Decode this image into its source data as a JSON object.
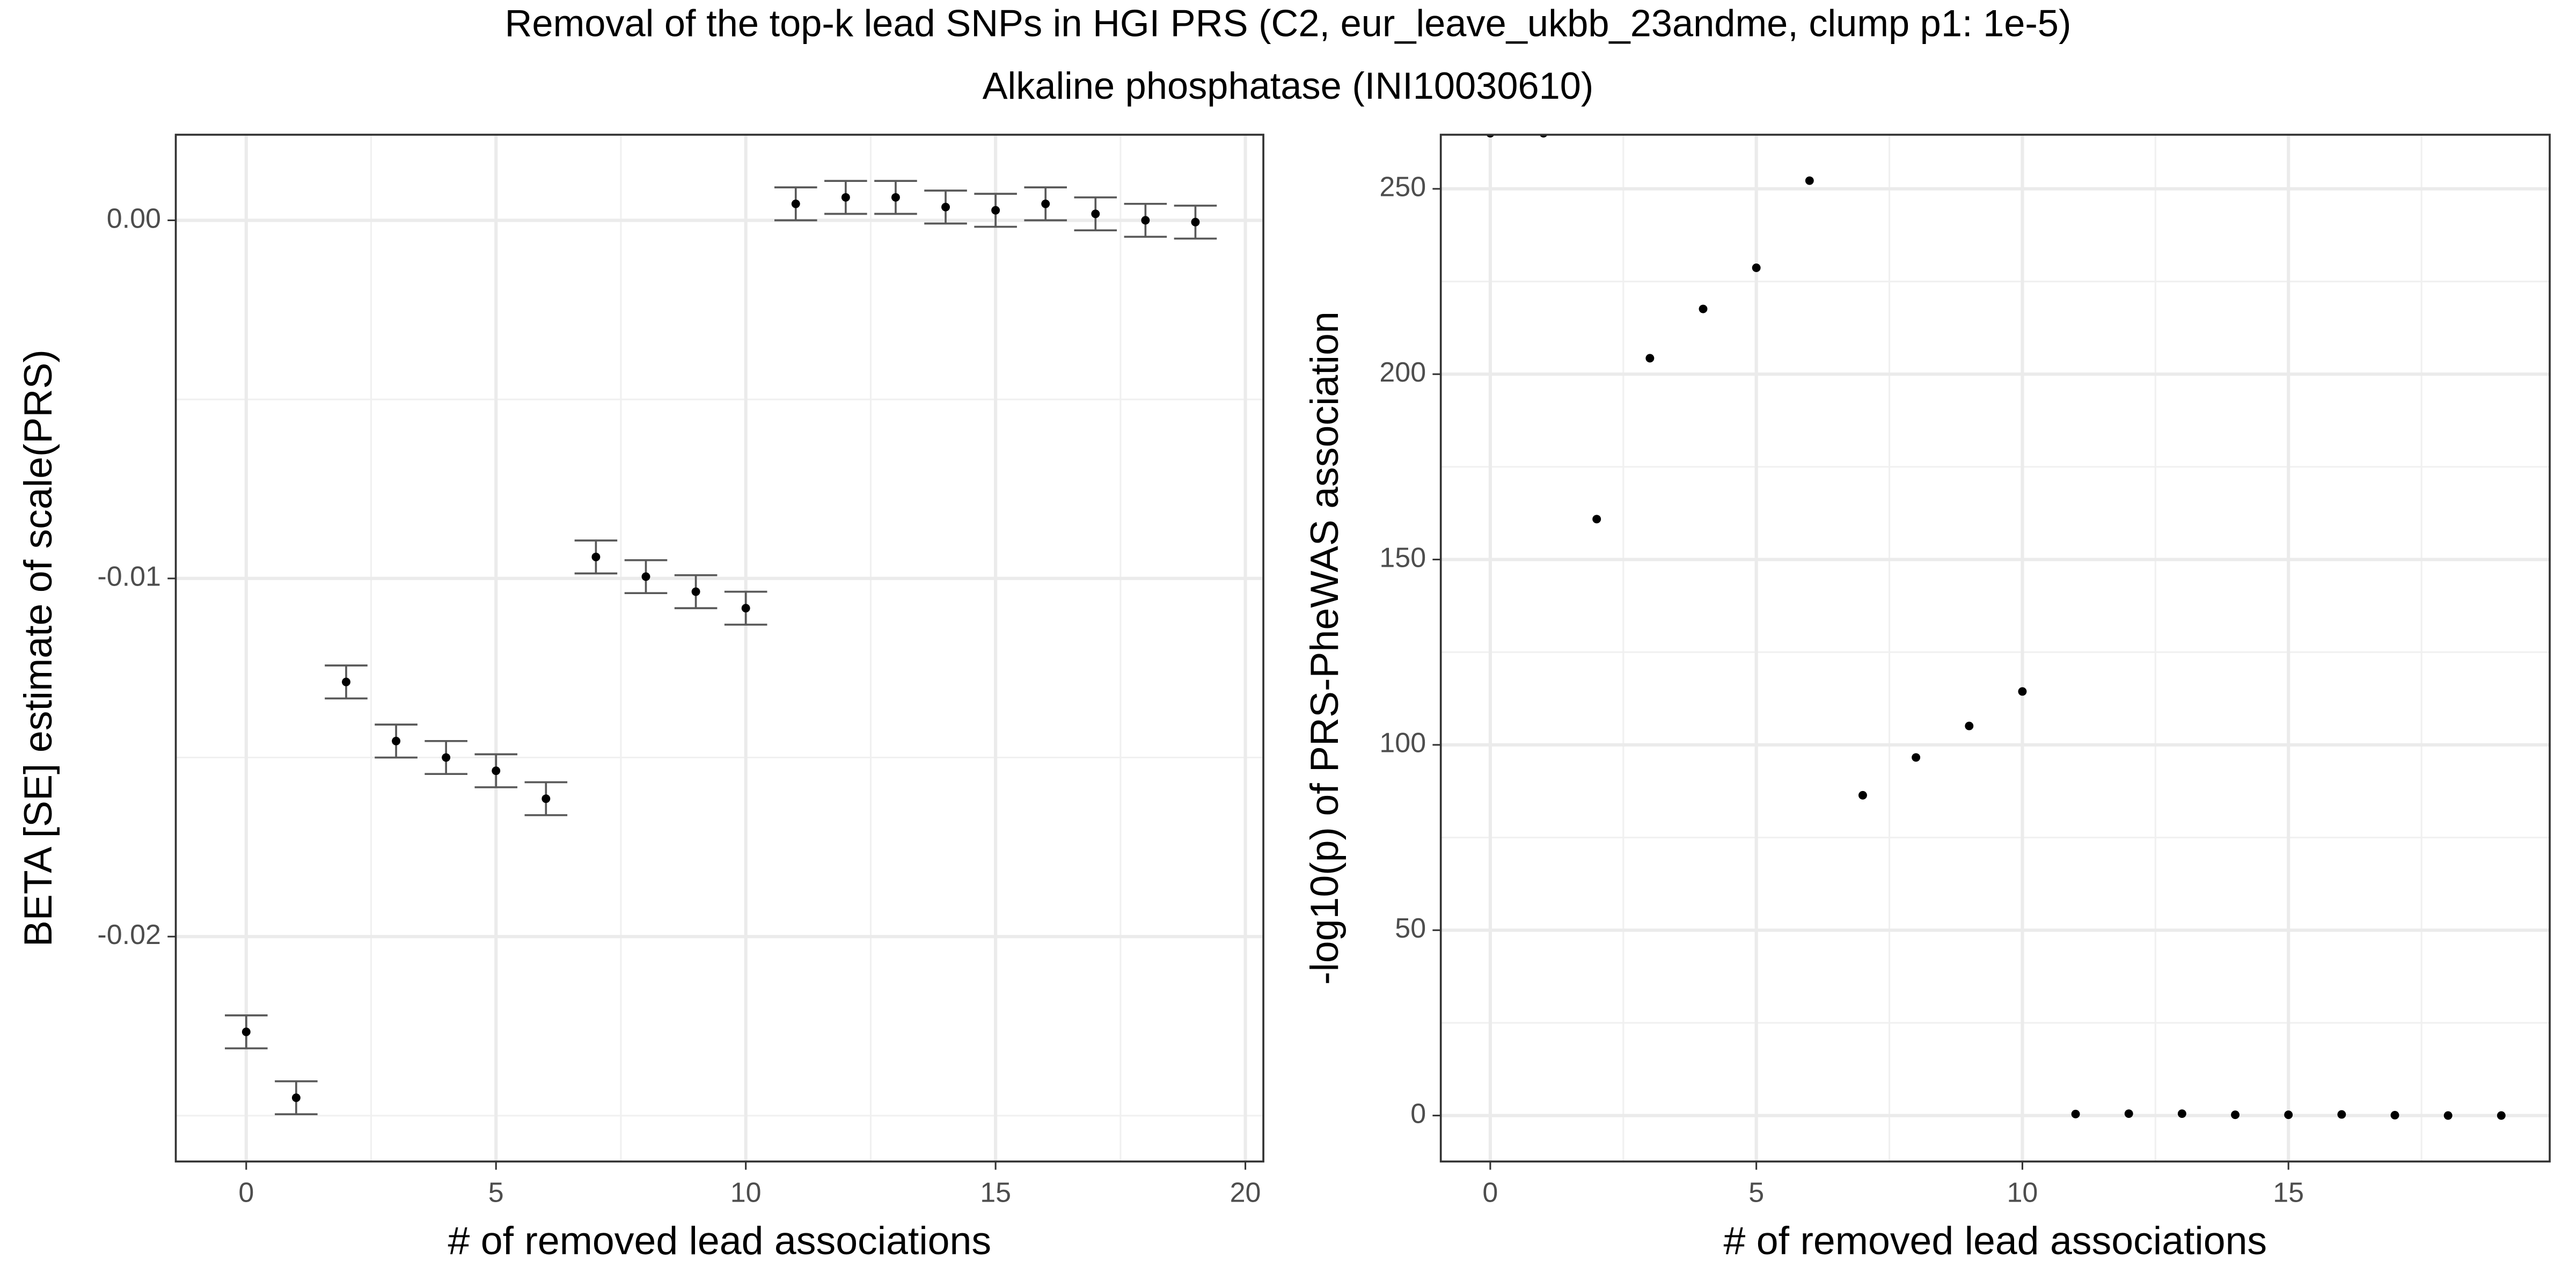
{
  "title": "Removal of the top-k lead SNPs in HGI PRS (C2, eur_leave_ukbb_23andme, clump p1: 1e-5)",
  "subtitle": "Alkaline phosphatase (INI10030610)",
  "chart_data": [
    {
      "type": "scatter",
      "x_label": "# of removed lead associations",
      "y_label": "BETA [SE] estimate of scale(PRS)",
      "x": [
        0,
        1,
        2,
        3,
        4,
        5,
        6,
        7,
        8,
        9,
        10,
        11,
        12,
        13,
        14,
        15,
        16,
        17,
        18,
        19
      ],
      "values": [
        -0.02266,
        -0.0245,
        -0.01289,
        -0.01454,
        -0.015,
        -0.01537,
        -0.01615,
        -0.0094,
        -0.00995,
        -0.01037,
        -0.01083,
        0.00046,
        0.00064,
        0.00064,
        0.00037,
        0.00028,
        0.00046,
        0.00018,
        0.0,
        -5e-05
      ],
      "errors": [
        0.00046,
        0.00046,
        0.00046,
        0.00046,
        0.00046,
        0.00046,
        0.00046,
        0.00046,
        0.00046,
        0.00046,
        0.00046,
        0.00046,
        0.00046,
        0.00046,
        0.00046,
        0.00046,
        0.00046,
        0.00046,
        0.00046,
        0.00046
      ],
      "color": "#000000",
      "error_color": "#595959",
      "xlim": [
        -1.41,
        20.36
      ],
      "ylim": [
        -0.02628,
        0.00239
      ],
      "xticks": [
        0,
        5,
        10,
        15,
        20
      ],
      "yticks": [
        {
          "value": 0,
          "label": "0.00"
        },
        {
          "value": -0.01,
          "label": "-0.01"
        },
        {
          "value": -0.02,
          "label": "-0.02"
        }
      ],
      "x_minor_ticks": [
        2.5,
        7.5,
        12.5,
        17.5
      ],
      "y_minor_ticks": [
        -0.025,
        -0.015,
        -0.005
      ],
      "grid": true
    },
    {
      "type": "scatter",
      "x_label": "# of removed lead associations",
      "y_label": "-log10(p) of PRS-PheWAS association",
      "x": [
        0,
        1,
        2,
        3,
        4,
        5,
        6,
        7,
        8,
        9,
        10,
        11,
        12,
        13,
        14,
        15,
        16,
        17,
        18,
        19
      ],
      "values": [
        265,
        265,
        160.9,
        204.3,
        217.6,
        228.7,
        252.2,
        86.4,
        96.6,
        105.1,
        114.4,
        0.4,
        0.5,
        0.5,
        0.2,
        0.2,
        0.3,
        0.1,
        0,
        0
      ],
      "color": "#000000",
      "xlim": [
        -0.93,
        19.91
      ],
      "ylim": [
        -12.4,
        264.6
      ],
      "xticks": [
        0,
        5,
        10,
        15
      ],
      "yticks": [
        0,
        50,
        100,
        150,
        200,
        250
      ],
      "x_minor_ticks": [
        2.5,
        7.5,
        12.5,
        17.5
      ],
      "y_minor_ticks": [
        25,
        75,
        125,
        175,
        225
      ],
      "grid": true
    }
  ]
}
